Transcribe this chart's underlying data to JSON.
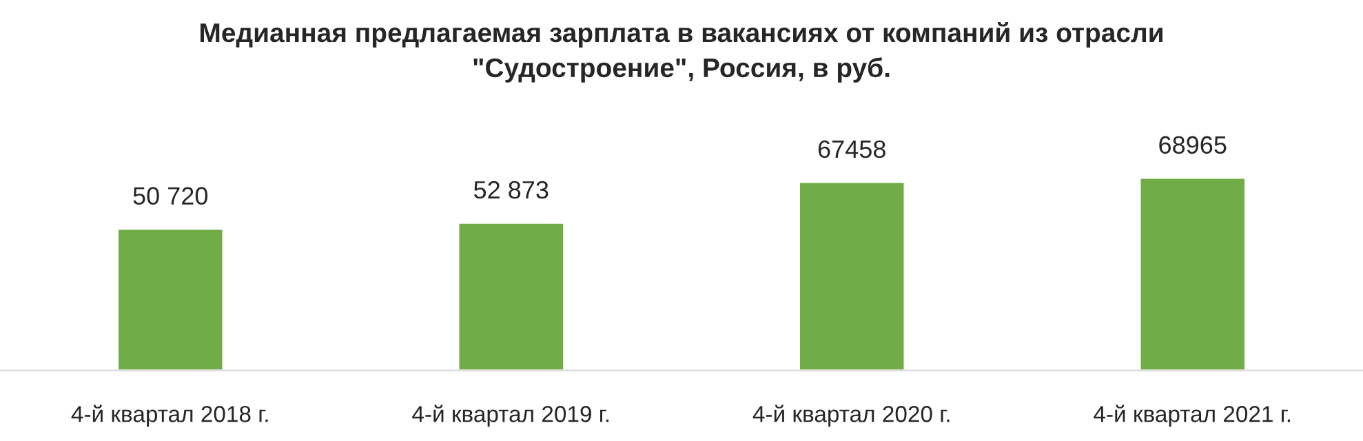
{
  "chart_data": {
    "type": "bar",
    "title": "Медианная предлагаемая зарплата в вакансиях от компаний из отрасли\n\"Судостроение\", Россия, в руб.",
    "categories": [
      "4-й квартал 2018 г.",
      "4-й квартал 2019 г.",
      "4-й квартал 2020 г.",
      "4-й квартал 2021 г."
    ],
    "values": [
      50720,
      52873,
      67458,
      68965
    ],
    "value_labels": [
      "50 720",
      "52 873",
      "67458",
      "68965"
    ],
    "color": "#70ad47",
    "grid": false,
    "legend": false
  }
}
